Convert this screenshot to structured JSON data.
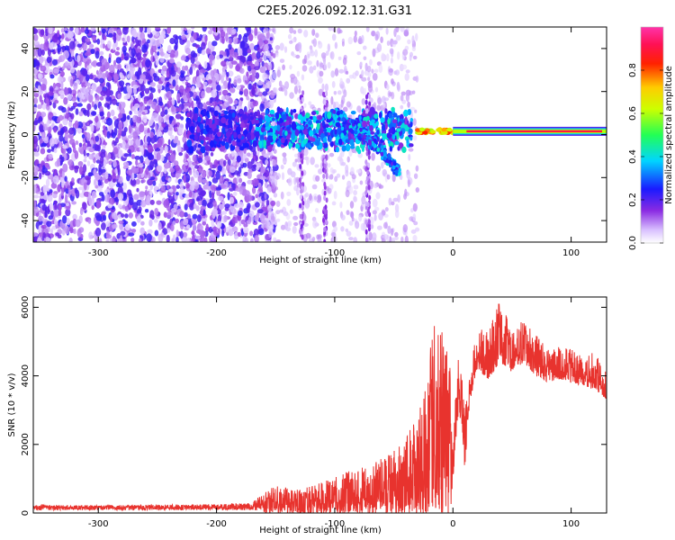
{
  "figure_title": "C2E5.2026.092.12.31.G31",
  "chart_data": [
    {
      "type": "heatmap",
      "xlabel": "Height of straight line (km)",
      "ylabel": "Frequency (Hz)",
      "xlim": [
        -355,
        130
      ],
      "ylim": [
        -50,
        50
      ],
      "x_ticks": [
        -300,
        -200,
        -100,
        0,
        100
      ],
      "y_ticks": [
        40,
        20,
        0,
        -20,
        -40
      ],
      "colorbar": {
        "label": "Normalized spectral amplitude",
        "range": [
          0.0,
          1.0
        ],
        "ticks": [
          0.0,
          0.2,
          0.4,
          0.6,
          0.8
        ],
        "colormap": "rainbow (white/violet → blue → cyan → green → yellow → red → magenta)"
      },
      "features": {
        "noise_region_x": [
          -355,
          -160
        ],
        "scattered_energy_x": [
          -160,
          -30
        ],
        "descending_track": {
          "x": [
            -100,
            -80,
            -60,
            -45
          ],
          "y": [
            10,
            2,
            -8,
            -18
          ]
        },
        "steady_band": {
          "x": [
            0,
            130
          ],
          "frequency_hz": 1.5,
          "amplitude": 0.9
        }
      },
      "grid": false,
      "legend": "colorbar right"
    },
    {
      "type": "line",
      "xlabel": "Height of straight line (km)",
      "ylabel": "SNR (10 * v/v)",
      "xlim": [
        -355,
        130
      ],
      "ylim": [
        0,
        6300
      ],
      "x_ticks": [
        -300,
        -200,
        -100,
        0,
        100
      ],
      "y_ticks": [
        0,
        2000,
        4000,
        6000
      ],
      "line_color": "#e8332e",
      "series": [
        {
          "envelope": {
            "x": [
              -355,
              -300,
              -250,
              -200,
              -170,
              -160,
              -150,
              -130,
              -110,
              -90,
              -70,
              -50,
              -35,
              -25,
              -15,
              -8,
              -2,
              0,
              5,
              10,
              15,
              20,
              30,
              40,
              50,
              60,
              70,
              80,
              90,
              100,
              110,
              120,
              130
            ],
            "y": [
              230,
              230,
              240,
              260,
              300,
              600,
              800,
              700,
              900,
              1200,
              1400,
              1800,
              2500,
              3500,
              5700,
              5200,
              4500,
              2500,
              5000,
              3000,
              4500,
              5500,
              5300,
              6300,
              5300,
              5700,
              5200,
              4800,
              4900,
              4800,
              4600,
              4700,
              4200
            ],
            "baseline": [
              0,
              0,
              0,
              0,
              0,
              0,
              0,
              0,
              0,
              0,
              0,
              0,
              0,
              0,
              0,
              0,
              0,
              1000,
              3000,
              1300,
              3300,
              4200,
              3900,
              4400,
              4100,
              4400,
              4000,
              3800,
              3900,
              3800,
              3700,
              3600,
              3300
            ]
          }
        }
      ],
      "grid": false
    }
  ]
}
